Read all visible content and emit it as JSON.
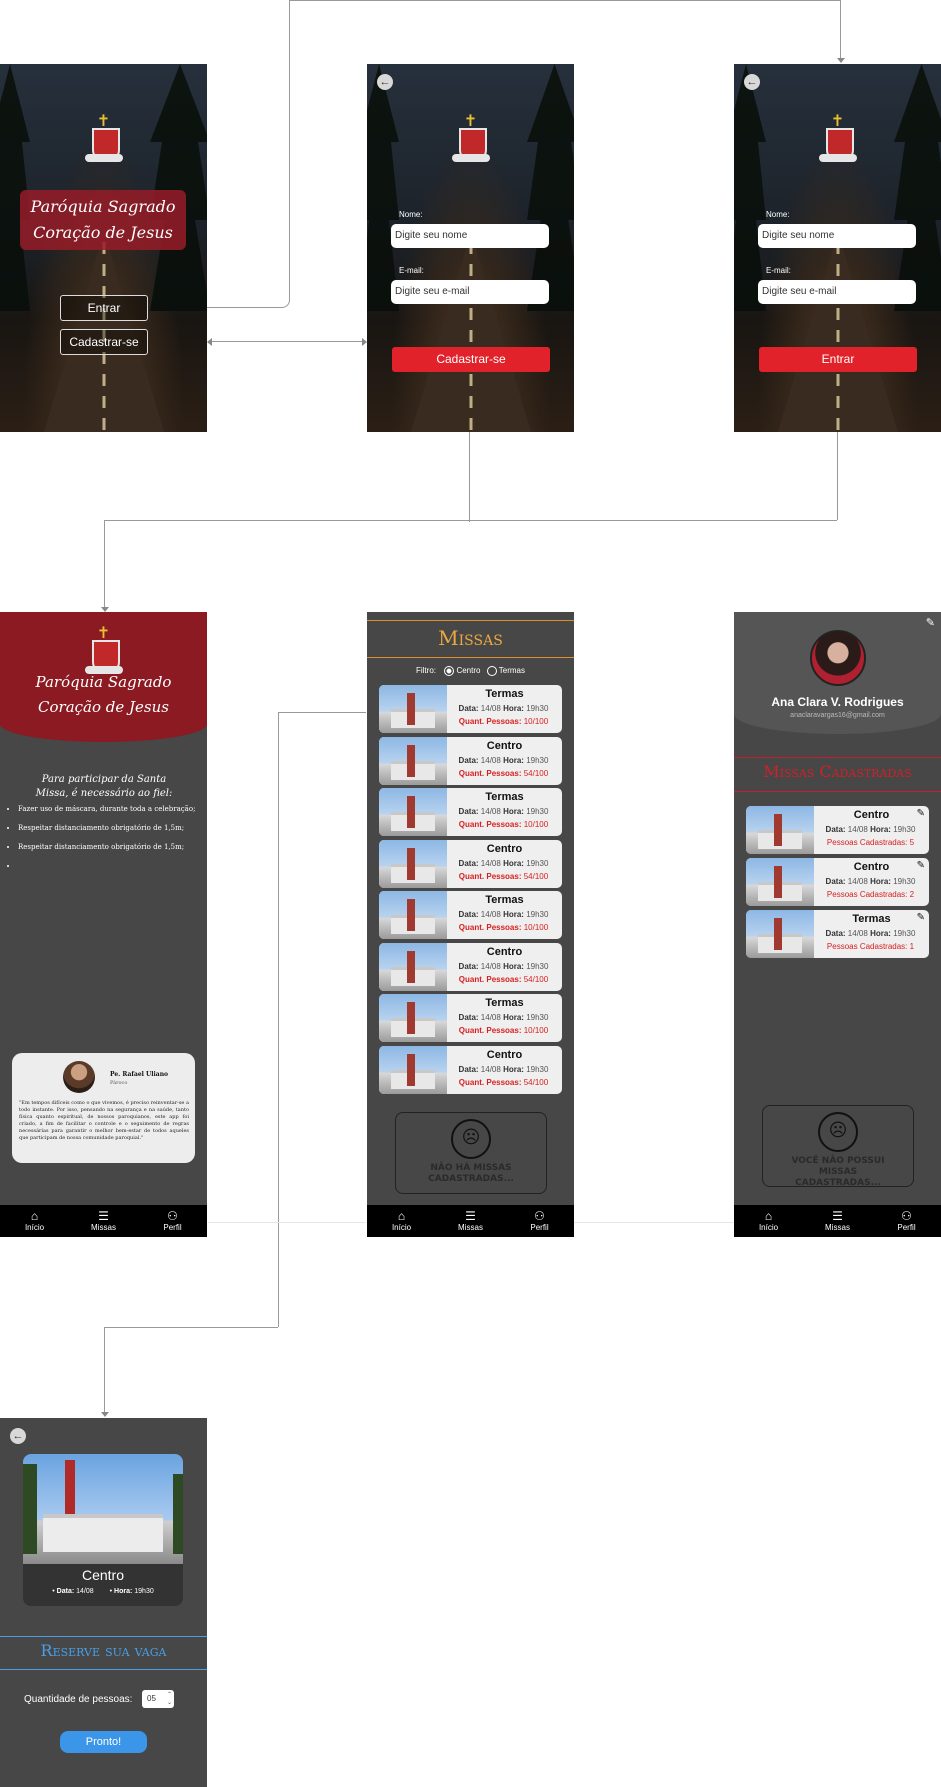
{
  "brand": {
    "name_line1": "Paróquia Sagrado",
    "name_line2": "Coração de Jesus"
  },
  "welcome": {
    "enter_label": "Entrar",
    "register_label": "Cadastrar-se"
  },
  "register": {
    "name_label": "Nome:",
    "name_placeholder": "Digite seu nome",
    "email_label": "E-mail:",
    "email_placeholder": "Digite seu e-mail",
    "submit_label": "Cadastrar-se"
  },
  "login": {
    "name_label": "Nome:",
    "name_placeholder": "Digite seu nome",
    "email_label": "E-mail:",
    "email_placeholder": "Digite seu e-mail",
    "submit_label": "Entrar"
  },
  "home": {
    "intro": "Para participar da Santa Missa, é necessário ao fiel:",
    "rules": [
      "Fazer uso de máscara, durante toda a celebração;",
      "Respeitar distanciamento obrigatório de 1,5m;",
      "Respeitar distanciamento obrigatório de 1,5m;",
      ""
    ],
    "priest": {
      "name": "Pe. Rafael Uliano",
      "role": "Pároco",
      "message": "\"Em tempos difíceis como o que vivemos, é preciso reinventar-se a todo instante. Por isso, pensando na segurança e na saúde, tanto física quanto espiritual, de nossos paroquianos, este app foi criado, a fim de facilitar o controle e o seguimento de regras necessárias para garantir o melhor bem-estar de todos aqueles que participam de nossa comunidade paroquial.\""
    }
  },
  "nav": {
    "home": "Início",
    "masses": "Missas",
    "profile": "Perfil"
  },
  "missas": {
    "title": "Missas",
    "filter_label": "Filtro:",
    "filter_options": [
      "Centro",
      "Termas"
    ],
    "date_label": "Data:",
    "time_label": "Hora:",
    "people_label": "Quant. Pessoas:",
    "items": [
      {
        "name": "Termas",
        "date": "14/08",
        "time": "19h30",
        "people": "10/100"
      },
      {
        "name": "Centro",
        "date": "14/08",
        "time": "19h30",
        "people": "54/100"
      },
      {
        "name": "Termas",
        "date": "14/08",
        "time": "19h30",
        "people": "10/100"
      },
      {
        "name": "Centro",
        "date": "14/08",
        "time": "19h30",
        "people": "54/100"
      },
      {
        "name": "Termas",
        "date": "14/08",
        "time": "19h30",
        "people": "10/100"
      },
      {
        "name": "Centro",
        "date": "14/08",
        "time": "19h30",
        "people": "54/100"
      },
      {
        "name": "Termas",
        "date": "14/08",
        "time": "19h30",
        "people": "10/100"
      },
      {
        "name": "Centro",
        "date": "14/08",
        "time": "19h30",
        "people": "54/100"
      }
    ],
    "empty_text": "NÃO HÁ MISSAS CADASTRADAS..."
  },
  "profile": {
    "name": "Ana Clara V. Rodrigues",
    "email": "anaclaravargas16@gmail.com",
    "section_title": "Missas Cadastradas",
    "registered_label": "Pessoas Cadastradas:",
    "items": [
      {
        "name": "Centro",
        "date": "14/08",
        "time": "19h30",
        "registered": "5"
      },
      {
        "name": "Centro",
        "date": "14/08",
        "time": "19h30",
        "registered": "2"
      },
      {
        "name": "Termas",
        "date": "14/08",
        "time": "19h30",
        "registered": "1"
      }
    ],
    "empty_text": "VOCÊ NÃO POSSUI MISSAS CADASTRADAS..."
  },
  "detail": {
    "name": "Centro",
    "date_label": "Data:",
    "date": "14/08",
    "time_label": "Hora:",
    "time": "19h30",
    "reserve_title": "Reserve sua vaga",
    "quantity_label": "Quantidade de pessoas:",
    "quantity_value": "05",
    "submit_label": "Pronto!"
  },
  "colors": {
    "accent_red": "#e2222a",
    "brand_red": "#8b1a22",
    "gold": "#e8a840",
    "blue": "#4a9ee8",
    "dark_bg": "#474747"
  }
}
